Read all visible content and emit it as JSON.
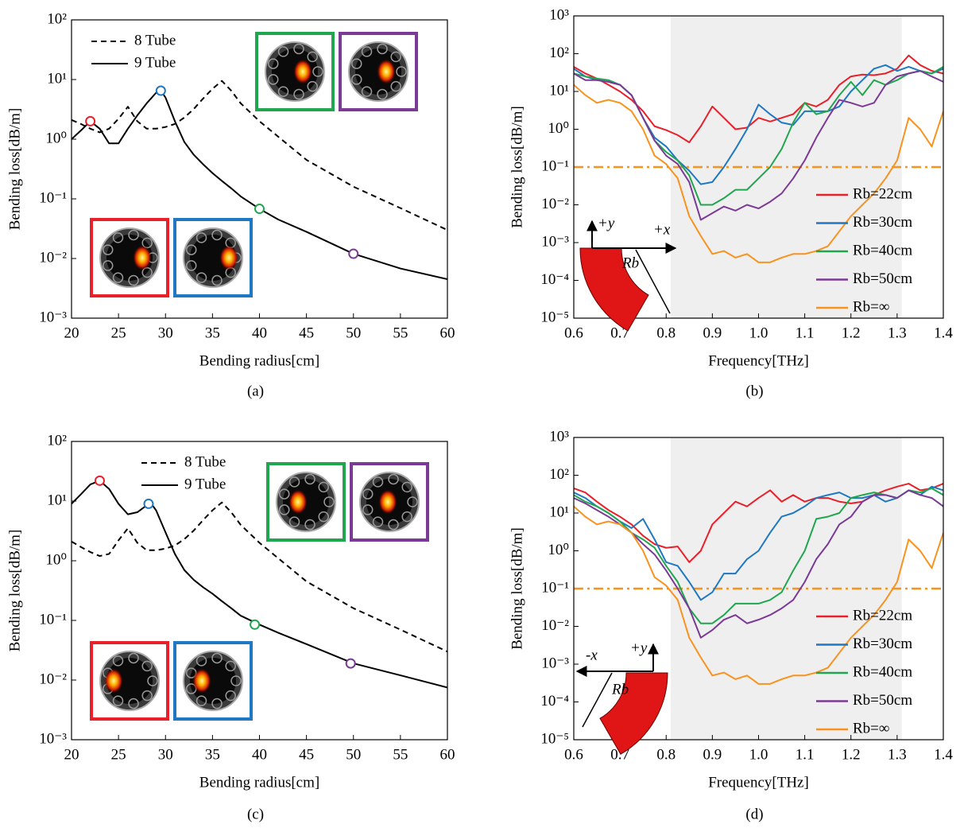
{
  "chart_data": [
    {
      "type": "line",
      "caption": "(a)",
      "xlabel": "Bending radius[cm]",
      "ylabel": "Bending loss[dB/m]",
      "yscale": "log",
      "legend": "upper left",
      "xlim": [
        20,
        60
      ],
      "xticks": [
        20,
        25,
        30,
        35,
        40,
        45,
        50,
        55,
        60
      ],
      "ylim": [
        0.001,
        100
      ],
      "yticks": [
        {
          "value": 0.001,
          "label": "10⁻³"
        },
        {
          "value": 0.01,
          "label": "10⁻²"
        },
        {
          "value": 0.1,
          "label": "10⁻¹"
        },
        {
          "value": 1,
          "label": "10⁰"
        },
        {
          "value": 10,
          "label": "10¹"
        },
        {
          "value": 100,
          "label": "10²"
        }
      ],
      "x": [
        20,
        21,
        22,
        23,
        24,
        25,
        26,
        27,
        28,
        29,
        29.5,
        30,
        31,
        32,
        33,
        34,
        35,
        36,
        37,
        38,
        40,
        42,
        45,
        50,
        55,
        60
      ],
      "series": [
        {
          "name": "8 Tube",
          "color": "#000000",
          "style": "dashed",
          "values": [
            2.1,
            1.8,
            1.5,
            1.3,
            1.5,
            2.2,
            3.5,
            2.0,
            1.5,
            1.5,
            1.55,
            1.6,
            1.8,
            2.3,
            3.2,
            4.8,
            7,
            9.5,
            6.5,
            4,
            2,
            1.1,
            0.45,
            0.16,
            0.07,
            0.03
          ]
        },
        {
          "name": "9 Tube",
          "color": "#000000",
          "style": "solid",
          "values": [
            1.0,
            1.4,
            2.0,
            1.5,
            0.85,
            0.85,
            1.5,
            2.5,
            4,
            6,
            6.5,
            5,
            2,
            0.9,
            0.55,
            0.38,
            0.27,
            0.2,
            0.15,
            0.11,
            0.068,
            0.045,
            0.028,
            0.012,
            0.0068,
            0.0045
          ]
        }
      ],
      "markers": [
        {
          "x": 22,
          "y": 2,
          "color": "#e8202a"
        },
        {
          "x": 29.5,
          "y": 6.5,
          "color": "#1f78c1"
        },
        {
          "x": 40,
          "y": 0.068,
          "color": "#21a650"
        },
        {
          "x": 50,
          "y": 0.012,
          "color": "#7b3a96"
        }
      ]
    },
    {
      "type": "line",
      "caption": "(b)",
      "xlabel": "Frequency[THz]",
      "ylabel": "Bending loss[dB/m]",
      "yscale": "log",
      "legend": "lower right",
      "xlim": [
        0.6,
        1.4
      ],
      "xticks": [
        0.6,
        0.7,
        0.8,
        0.9,
        {
          "value": 1,
          "label": "1.0"
        },
        1.1,
        1.2,
        1.3,
        1.4
      ],
      "ylim": [
        1e-05,
        1000
      ],
      "yticks": [
        {
          "value": 1e-05,
          "label": "10⁻⁵"
        },
        {
          "value": 0.0001,
          "label": "10⁻⁴"
        },
        {
          "value": 0.001,
          "label": "10⁻³"
        },
        {
          "value": 0.01,
          "label": "10⁻²"
        },
        {
          "value": 0.1,
          "label": "10⁻¹"
        },
        {
          "value": 1,
          "label": "10⁰"
        },
        {
          "value": 10,
          "label": "10¹"
        },
        {
          "value": 100,
          "label": "10²"
        },
        {
          "value": 1000,
          "label": "10³"
        }
      ],
      "shaded_range": [
        0.81,
        1.31
      ],
      "threshold": 0.1,
      "threshold_color": "#f7931e",
      "annotations": [
        "+y",
        "+x",
        "Rb"
      ],
      "x": [
        0.6,
        0.625,
        0.65,
        0.675,
        0.7,
        0.725,
        0.75,
        0.775,
        0.8,
        0.825,
        0.85,
        0.875,
        0.9,
        0.925,
        0.95,
        0.975,
        1.0,
        1.025,
        1.05,
        1.075,
        1.1,
        1.125,
        1.15,
        1.175,
        1.2,
        1.225,
        1.25,
        1.275,
        1.3,
        1.325,
        1.35,
        1.375,
        1.4
      ],
      "series": [
        {
          "name": "Rb=22cm",
          "color": "#e8202a",
          "values": [
            45,
            30,
            22,
            15,
            10,
            6,
            3,
            1.2,
            0.95,
            0.7,
            0.45,
            1.2,
            4,
            2,
            1,
            1.1,
            2,
            1.6,
            2,
            2.5,
            5,
            4,
            6,
            15,
            25,
            28,
            27,
            30,
            40,
            90,
            50,
            35,
            30
          ]
        },
        {
          "name": "Rb=30cm",
          "color": "#1f78c1",
          "values": [
            40,
            25,
            20,
            18,
            15,
            8,
            2,
            0.6,
            0.35,
            0.15,
            0.08,
            0.035,
            0.04,
            0.1,
            0.3,
            1,
            4.5,
            2.5,
            1.5,
            1.3,
            3,
            3,
            3,
            4,
            10,
            20,
            40,
            50,
            35,
            45,
            35,
            30,
            40
          ]
        },
        {
          "name": "Rb=40cm",
          "color": "#21a650",
          "values": [
            30,
            25,
            22,
            20,
            15,
            8,
            2,
            0.5,
            0.25,
            0.15,
            0.06,
            0.01,
            0.01,
            0.015,
            0.025,
            0.025,
            0.05,
            0.1,
            0.3,
            1.5,
            5,
            2.5,
            3,
            8,
            18,
            8,
            20,
            15,
            20,
            30,
            35,
            30,
            45
          ]
        },
        {
          "name": "Rb=50cm",
          "color": "#7b3a96",
          "values": [
            30,
            20,
            20,
            18,
            15,
            8,
            2,
            0.5,
            0.2,
            0.12,
            0.04,
            0.004,
            0.006,
            0.009,
            0.007,
            0.01,
            0.008,
            0.012,
            0.02,
            0.05,
            0.15,
            0.6,
            2,
            6,
            5,
            4,
            5,
            15,
            25,
            30,
            35,
            25,
            18
          ]
        },
        {
          "name": "Rb=∞",
          "color": "#f7931e",
          "values": [
            15,
            8,
            5,
            6,
            5,
            3,
            1,
            0.2,
            0.12,
            0.05,
            0.005,
            0.0015,
            0.0005,
            0.0006,
            0.0004,
            0.0005,
            0.0003,
            0.0003,
            0.0004,
            0.0005,
            0.0005,
            0.0006,
            0.0008,
            0.002,
            0.005,
            0.01,
            0.02,
            0.05,
            0.15,
            2,
            1,
            0.35,
            3
          ]
        }
      ]
    },
    {
      "type": "line",
      "caption": "(c)",
      "xlabel": "Bending radius[cm]",
      "ylabel": "Bending loss[dB/m]",
      "yscale": "log",
      "legend": "upper center",
      "xlim": [
        20,
        60
      ],
      "xticks": [
        20,
        25,
        30,
        35,
        40,
        45,
        50,
        55,
        60
      ],
      "ylim": [
        0.001,
        100
      ],
      "yticks": [
        {
          "value": 0.001,
          "label": "10⁻³"
        },
        {
          "value": 0.01,
          "label": "10⁻²"
        },
        {
          "value": 0.1,
          "label": "10⁻¹"
        },
        {
          "value": 1,
          "label": "10⁰"
        },
        {
          "value": 10,
          "label": "10¹"
        },
        {
          "value": 100,
          "label": "10²"
        }
      ],
      "x": [
        20,
        21,
        22,
        23,
        24,
        25,
        26,
        27,
        28,
        28.5,
        29,
        30,
        31,
        32,
        33,
        34,
        35,
        36,
        37,
        38,
        40,
        42,
        45,
        50,
        55,
        60
      ],
      "series": [
        {
          "name": "8 Tube",
          "color": "#000000",
          "style": "dashed",
          "values": [
            2.1,
            1.7,
            1.4,
            1.2,
            1.3,
            2.2,
            3.5,
            2.0,
            1.5,
            1.5,
            1.5,
            1.6,
            1.8,
            2.3,
            3.2,
            4.8,
            7,
            9.5,
            6.5,
            4,
            2,
            1.1,
            0.45,
            0.16,
            0.07,
            0.03
          ]
        },
        {
          "name": "9 Tube",
          "color": "#000000",
          "style": "solid",
          "values": [
            9,
            13,
            19,
            22,
            16,
            9,
            6,
            6.5,
            8.5,
            9,
            7,
            3,
            1.3,
            0.7,
            0.48,
            0.36,
            0.28,
            0.21,
            0.16,
            0.12,
            0.085,
            0.062,
            0.04,
            0.019,
            0.012,
            0.0075
          ]
        }
      ],
      "markers": [
        {
          "x": 23,
          "y": 22,
          "color": "#e8202a"
        },
        {
          "x": 28.2,
          "y": 9,
          "color": "#1f78c1"
        },
        {
          "x": 39.5,
          "y": 0.085,
          "color": "#21a650"
        },
        {
          "x": 49.7,
          "y": 0.019,
          "color": "#7b3a96"
        }
      ]
    },
    {
      "type": "line",
      "caption": "(d)",
      "xlabel": "Frequency[THz]",
      "ylabel": "Bending loss[dB/m]",
      "yscale": "log",
      "legend": "lower right",
      "xlim": [
        0.6,
        1.4
      ],
      "xticks": [
        0.6,
        0.7,
        0.8,
        0.9,
        {
          "value": 1,
          "label": "1.0"
        },
        1.1,
        1.2,
        1.3,
        1.4
      ],
      "ylim": [
        1e-05,
        1000
      ],
      "yticks": [
        {
          "value": 1e-05,
          "label": "10⁻⁵"
        },
        {
          "value": 0.0001,
          "label": "10⁻⁴"
        },
        {
          "value": 0.001,
          "label": "10⁻³"
        },
        {
          "value": 0.01,
          "label": "10⁻²"
        },
        {
          "value": 0.1,
          "label": "10⁻¹"
        },
        {
          "value": 1,
          "label": "10⁰"
        },
        {
          "value": 10,
          "label": "10¹"
        },
        {
          "value": 100,
          "label": "10²"
        },
        {
          "value": 1000,
          "label": "10³"
        }
      ],
      "shaded_range": [
        0.81,
        1.31
      ],
      "threshold": 0.1,
      "threshold_color": "#f7931e",
      "annotations": [
        "-x",
        "+y",
        "Rb"
      ],
      "x": [
        0.6,
        0.625,
        0.65,
        0.675,
        0.7,
        0.725,
        0.75,
        0.775,
        0.8,
        0.825,
        0.85,
        0.875,
        0.9,
        0.925,
        0.95,
        0.975,
        1.0,
        1.025,
        1.05,
        1.075,
        1.1,
        1.125,
        1.15,
        1.175,
        1.2,
        1.225,
        1.25,
        1.275,
        1.3,
        1.325,
        1.35,
        1.375,
        1.4
      ],
      "series": [
        {
          "name": "Rb=22cm",
          "color": "#e8202a",
          "values": [
            45,
            35,
            20,
            12,
            8,
            5,
            2.5,
            1.5,
            1.2,
            1.3,
            0.5,
            1,
            5,
            10,
            20,
            15,
            25,
            40,
            20,
            30,
            20,
            25,
            25,
            20,
            18,
            20,
            30,
            40,
            50,
            60,
            40,
            45,
            60
          ]
        },
        {
          "name": "Rb=30cm",
          "color": "#1f78c1",
          "values": [
            35,
            25,
            15,
            10,
            6,
            4,
            7,
            2,
            0.5,
            0.4,
            0.15,
            0.05,
            0.08,
            0.25,
            0.25,
            0.6,
            1,
            3,
            8,
            10,
            15,
            25,
            30,
            35,
            25,
            25,
            30,
            20,
            25,
            40,
            30,
            50,
            40
          ]
        },
        {
          "name": "Rb=40cm",
          "color": "#21a650",
          "values": [
            30,
            20,
            15,
            10,
            6,
            3,
            2,
            1.2,
            0.4,
            0.15,
            0.03,
            0.012,
            0.012,
            0.02,
            0.04,
            0.04,
            0.04,
            0.05,
            0.08,
            0.3,
            1,
            7,
            8,
            10,
            25,
            30,
            35,
            30,
            25,
            40,
            35,
            45,
            30
          ]
        },
        {
          "name": "Rb=50cm",
          "color": "#7b3a96",
          "values": [
            25,
            18,
            12,
            8,
            5,
            3,
            1.5,
            0.8,
            0.3,
            0.1,
            0.03,
            0.005,
            0.008,
            0.015,
            0.02,
            0.012,
            0.015,
            0.02,
            0.03,
            0.05,
            0.15,
            0.6,
            1.5,
            5,
            8,
            20,
            30,
            30,
            25,
            40,
            30,
            25,
            15
          ]
        },
        {
          "name": "Rb=∞",
          "color": "#f7931e",
          "values": [
            15,
            8,
            5,
            6,
            5,
            3,
            1,
            0.2,
            0.12,
            0.05,
            0.005,
            0.0015,
            0.0005,
            0.0006,
            0.0004,
            0.0005,
            0.0003,
            0.0003,
            0.0004,
            0.0005,
            0.0005,
            0.0006,
            0.0008,
            0.002,
            0.005,
            0.01,
            0.02,
            0.05,
            0.15,
            2,
            1,
            0.35,
            3
          ]
        }
      ]
    }
  ]
}
